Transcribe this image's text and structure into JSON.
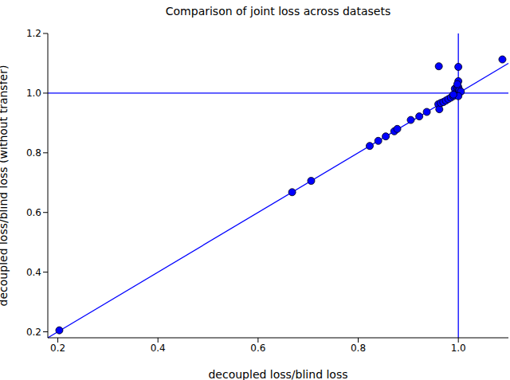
{
  "chart_data": {
    "type": "scatter",
    "title": "Comparison of joint loss across datasets",
    "x_label": "decoupled loss/blind loss",
    "y_label": "decoupled loss/blind loss (without transfer)",
    "xlim": [
      0.18,
      1.1
    ],
    "ylim": [
      0.18,
      1.2
    ],
    "xticks": [
      0.2,
      0.4,
      0.6,
      0.8,
      {
        "value": 1,
        "label": "1.0"
      }
    ],
    "yticks": [
      0.2,
      0.4,
      0.6,
      0.8,
      {
        "value": 1,
        "label": "1.0"
      },
      1.2
    ],
    "grid": false,
    "series": [
      {
        "type": "scatter",
        "color": "#0000ff",
        "marker": "circle",
        "x": [
          0.203,
          0.668,
          0.706,
          0.823,
          0.84,
          0.855,
          0.872,
          0.878,
          0.905,
          0.922,
          0.937,
          0.96,
          0.962,
          0.965,
          0.97,
          0.975,
          0.98,
          0.985,
          0.99,
          0.993,
          0.995,
          0.997,
          1.0,
          1.0,
          1.0,
          1.002,
          1.005,
          1.0,
          0.961,
          1.0,
          1.088,
          0.99,
          0.998
        ],
        "values": [
          0.205,
          0.668,
          0.706,
          0.823,
          0.84,
          0.855,
          0.872,
          0.88,
          0.91,
          0.922,
          0.937,
          0.963,
          0.946,
          0.967,
          0.97,
          0.975,
          0.98,
          0.985,
          0.99,
          1.015,
          1.0,
          1.02,
          1.0,
          1.04,
          1.02,
          1.01,
          1.005,
          0.99,
          1.09,
          1.088,
          1.113,
          0.995,
          1.03
        ]
      },
      {
        "type": "line",
        "color": "#0000ff",
        "line_style": "solid",
        "x": [
          0.18,
          1.1
        ],
        "values": [
          0.18,
          1.1
        ]
      }
    ],
    "hlines": [
      1
    ],
    "vlines": [
      1
    ]
  }
}
